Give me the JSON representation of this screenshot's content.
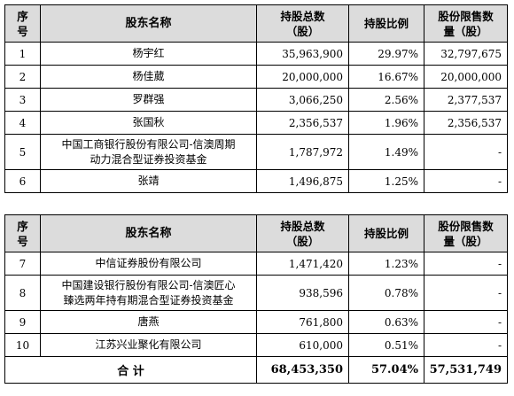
{
  "headers": {
    "index": [
      "序",
      "号"
    ],
    "name": "股东名称",
    "total_line1": "持股总数",
    "total_line2": "（股）",
    "ratio": "持股比例",
    "restricted_line1": "股份限售数",
    "restricted_line2": "量（股）"
  },
  "table1": [
    {
      "idx": "1",
      "name": [
        "杨宇红"
      ],
      "total": "35,963,900",
      "ratio": "29.97%",
      "restricted": "32,797,675"
    },
    {
      "idx": "2",
      "name": [
        "杨佳葳"
      ],
      "total": "20,000,000",
      "ratio": "16.67%",
      "restricted": "20,000,000"
    },
    {
      "idx": "3",
      "name": [
        "罗群强"
      ],
      "total": "3,066,250",
      "ratio": "2.56%",
      "restricted": "2,377,537"
    },
    {
      "idx": "4",
      "name": [
        "张国秋"
      ],
      "total": "2,356,537",
      "ratio": "1.96%",
      "restricted": "2,356,537"
    },
    {
      "idx": "5",
      "name": [
        "中国工商银行股份有限公司-信澳周期",
        "动力混合型证券投资基金"
      ],
      "total": "1,787,972",
      "ratio": "1.49%",
      "restricted": "-"
    },
    {
      "idx": "6",
      "name": [
        "张靖"
      ],
      "total": "1,496,875",
      "ratio": "1.25%",
      "restricted": "-"
    }
  ],
  "table2": [
    {
      "idx": "7",
      "name": [
        "中信证券股份有限公司"
      ],
      "total": "1,471,420",
      "ratio": "1.23%",
      "restricted": "-"
    },
    {
      "idx": "8",
      "name": [
        "中国建设银行股份有限公司-信澳匠心",
        "臻选两年持有期混合型证券投资基金"
      ],
      "total": "938,596",
      "ratio": "0.78%",
      "restricted": "-"
    },
    {
      "idx": "9",
      "name": [
        "唐燕"
      ],
      "total": "761,800",
      "ratio": "0.63%",
      "restricted": "-"
    },
    {
      "idx": "10",
      "name": [
        "江苏兴业聚化有限公司"
      ],
      "total": "610,000",
      "ratio": "0.51%",
      "restricted": "-"
    }
  ],
  "summary": {
    "label": "合  计",
    "total": "68,453,350",
    "ratio": "57.04%",
    "restricted": "57,531,749"
  }
}
